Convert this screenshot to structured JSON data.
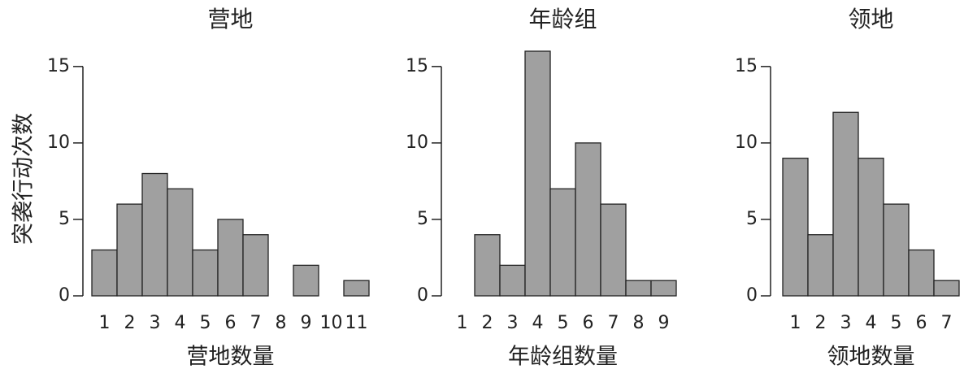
{
  "chart_data": [
    {
      "type": "bar",
      "title": "营地",
      "y_label": "突袭行动次数",
      "x_label": "营地数量",
      "categories": [
        "1",
        "2",
        "3",
        "4",
        "5",
        "6",
        "7",
        "8",
        "9",
        "10",
        "11"
      ],
      "values": [
        3,
        6,
        8,
        7,
        3,
        5,
        4,
        0,
        2,
        0,
        1
      ],
      "color": "#a0a0a0",
      "ylim": [
        0,
        16
      ],
      "yticks": [
        0,
        5,
        10,
        15
      ]
    },
    {
      "type": "bar",
      "title": "年龄组",
      "x_label": "年龄组数量",
      "categories": [
        "1",
        "2",
        "3",
        "4",
        "5",
        "6",
        "7",
        "8",
        "9"
      ],
      "values": [
        0,
        4,
        2,
        16,
        7,
        10,
        6,
        1,
        1
      ],
      "color": "#a0a0a0",
      "ylim": [
        0,
        16
      ],
      "yticks": [
        0,
        5,
        10,
        15
      ]
    },
    {
      "type": "bar",
      "title": "领地",
      "x_label": "领地数量",
      "categories": [
        "1",
        "2",
        "3",
        "4",
        "5",
        "6",
        "7"
      ],
      "values": [
        9,
        4,
        12,
        9,
        6,
        3,
        1
      ],
      "color": "#a0a0a0",
      "ylim": [
        0,
        16
      ],
      "yticks": [
        0,
        5,
        10,
        15
      ]
    }
  ]
}
